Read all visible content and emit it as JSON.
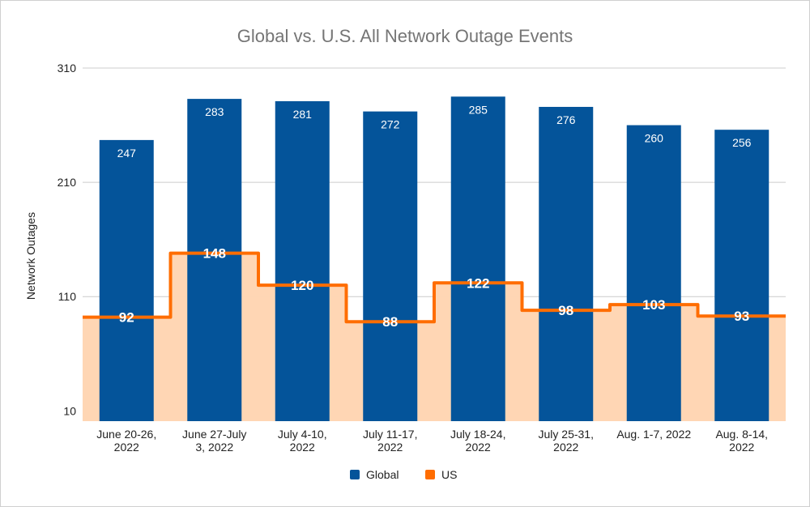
{
  "chart_data": {
    "type": "bar",
    "title": "Global vs. U.S. All Network Outage Events",
    "xlabel": "",
    "ylabel": "Network Outages",
    "ylim": [
      1,
      310
    ],
    "yticks": [
      10,
      110,
      210,
      310
    ],
    "grid": true,
    "legend_position": "bottom",
    "categories": [
      [
        "June 20-26,",
        "2022"
      ],
      [
        "June 27-July",
        "3, 2022"
      ],
      [
        "July 4-10,",
        "2022"
      ],
      [
        "July 11-17,",
        "2022"
      ],
      [
        "July 18-24,",
        "2022"
      ],
      [
        "July 25-31,",
        "2022"
      ],
      [
        "Aug. 1-7, 2022"
      ],
      [
        "Aug. 8-14,",
        "2022"
      ]
    ],
    "series": [
      {
        "name": "Global",
        "type": "bar",
        "color": "#04549a",
        "values": [
          247,
          283,
          281,
          272,
          285,
          276,
          260,
          256
        ]
      },
      {
        "name": "US",
        "type": "stepped-area",
        "color": "#ff6d01",
        "fill": "#ffd5b2",
        "values": [
          92,
          148,
          120,
          88,
          122,
          98,
          103,
          93
        ]
      }
    ]
  }
}
